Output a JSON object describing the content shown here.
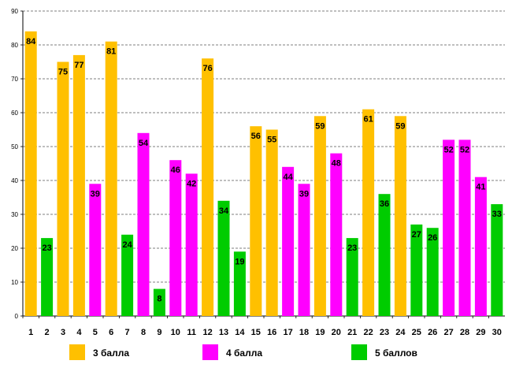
{
  "chart_data": {
    "type": "bar",
    "title": "",
    "xlabel": "",
    "ylabel": "",
    "ylim": [
      0,
      90
    ],
    "yticks": [
      "0",
      "10",
      "20",
      "30",
      "40",
      "50",
      "60",
      "70",
      "80",
      "90"
    ],
    "grid": true,
    "categories": [
      "1",
      "2",
      "3",
      "4",
      "5",
      "6",
      "7",
      "8",
      "9",
      "10",
      "11",
      "12",
      "13",
      "14",
      "15",
      "16",
      "17",
      "18",
      "19",
      "20",
      "21",
      "22",
      "23",
      "24",
      "25",
      "26",
      "27",
      "28",
      "29",
      "30"
    ],
    "values": [
      84,
      23,
      75,
      77,
      39,
      81,
      24,
      54,
      8,
      46,
      42,
      76,
      34,
      19,
      56,
      55,
      44,
      39,
      59,
      48,
      23,
      61,
      36,
      59,
      27,
      26,
      52,
      52,
      41,
      33
    ],
    "value_labels": [
      "84",
      "23",
      "75",
      "77",
      "39",
      "81",
      "24",
      "54",
      "8",
      "46",
      "42",
      "76",
      "34",
      "19",
      "56",
      "55",
      "44",
      "39",
      "59",
      "48",
      "23",
      "61",
      "36",
      "59",
      "27",
      "26",
      "52",
      "52",
      "41",
      "33"
    ],
    "groups": [
      3,
      5,
      3,
      3,
      4,
      3,
      5,
      4,
      5,
      4,
      4,
      3,
      5,
      5,
      3,
      3,
      4,
      4,
      3,
      4,
      5,
      3,
      5,
      3,
      5,
      5,
      4,
      4,
      4,
      5
    ],
    "legend": {
      "position": "bottom",
      "items": [
        {
          "key": 3,
          "label": "3 балла",
          "color": "#FFC000"
        },
        {
          "key": 4,
          "label": "4 балла",
          "color": "#FF00FF"
        },
        {
          "key": 5,
          "label": "5 баллов",
          "color": "#00CC00"
        }
      ]
    }
  }
}
